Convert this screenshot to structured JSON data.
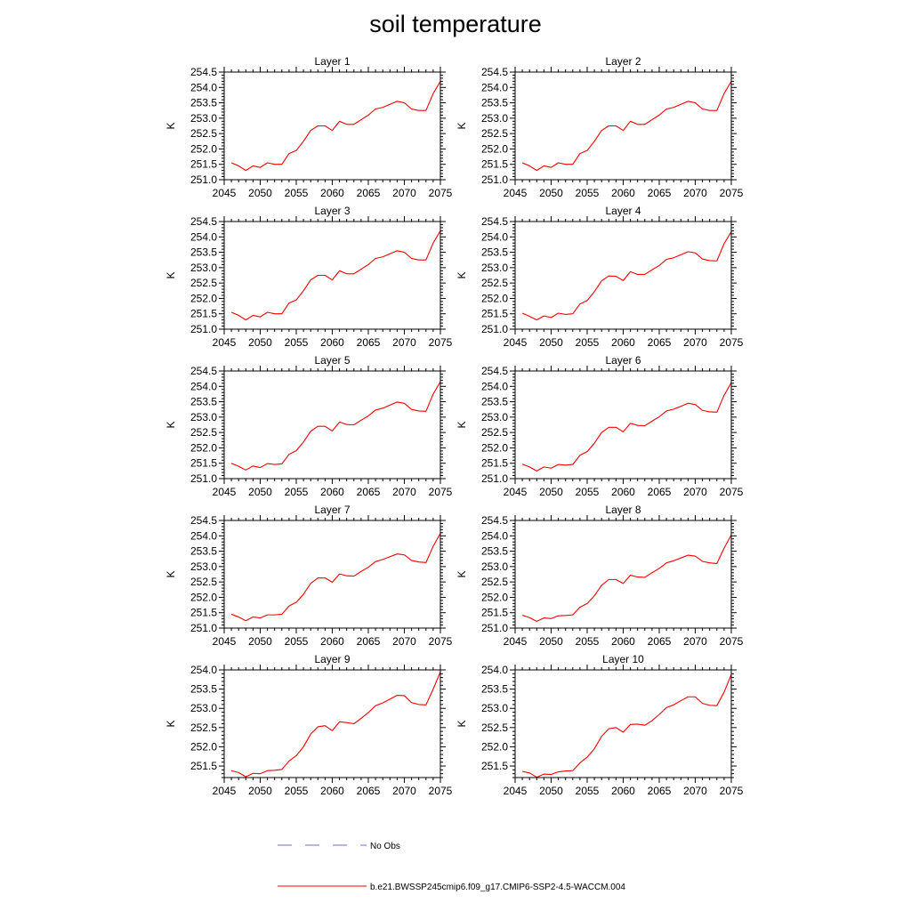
{
  "figure": {
    "title": "soil temperature",
    "legend": {
      "obs_label": "No Obs",
      "model_label": "b.e21.BWSSP245cmip6.f09_g17.CMIP6-SSP2-4.5-WACCM.004",
      "obs_color": "#6e6ec8",
      "model_color": "#ff0000"
    }
  },
  "chart_data": [
    {
      "type": "line",
      "title": "Layer 1",
      "ylabel": "K",
      "xlim": [
        2045,
        2075
      ],
      "ylim": [
        251.0,
        254.5
      ],
      "xticks": [
        2045,
        2050,
        2055,
        2060,
        2065,
        2070,
        2075
      ],
      "yticks": [
        251.0,
        251.5,
        252.0,
        252.5,
        253.0,
        253.5,
        254.0,
        254.5
      ],
      "series": [
        {
          "x": [
            2046,
            2047,
            2048,
            2049,
            2050,
            2051,
            2052,
            2053,
            2054,
            2055,
            2056,
            2057,
            2058,
            2059,
            2060,
            2061,
            2062,
            2063,
            2064,
            2065,
            2066,
            2067,
            2068,
            2069,
            2070,
            2071,
            2072,
            2073,
            2074,
            2075
          ],
          "y": [
            251.55,
            251.45,
            251.3,
            251.45,
            251.4,
            251.55,
            251.5,
            251.5,
            251.85,
            251.95,
            252.25,
            252.6,
            252.75,
            252.75,
            252.6,
            252.9,
            252.8,
            252.8,
            252.95,
            253.1,
            253.3,
            253.35,
            253.45,
            253.55,
            253.5,
            253.3,
            253.25,
            253.25,
            253.8,
            254.2
          ]
        }
      ]
    },
    {
      "type": "line",
      "title": "Layer 2",
      "ylabel": "K",
      "xlim": [
        2045,
        2075
      ],
      "ylim": [
        251.0,
        254.5
      ],
      "xticks": [
        2045,
        2050,
        2055,
        2060,
        2065,
        2070,
        2075
      ],
      "yticks": [
        251.0,
        251.5,
        252.0,
        252.5,
        253.0,
        253.5,
        254.0,
        254.5
      ],
      "series": [
        {
          "x": [
            2046,
            2047,
            2048,
            2049,
            2050,
            2051,
            2052,
            2053,
            2054,
            2055,
            2056,
            2057,
            2058,
            2059,
            2060,
            2061,
            2062,
            2063,
            2064,
            2065,
            2066,
            2067,
            2068,
            2069,
            2070,
            2071,
            2072,
            2073,
            2074,
            2075
          ],
          "y": [
            251.55,
            251.45,
            251.3,
            251.45,
            251.4,
            251.55,
            251.5,
            251.5,
            251.85,
            251.95,
            252.25,
            252.6,
            252.75,
            252.75,
            252.6,
            252.9,
            252.8,
            252.8,
            252.95,
            253.1,
            253.3,
            253.35,
            253.45,
            253.55,
            253.5,
            253.3,
            253.25,
            253.25,
            253.8,
            254.2
          ]
        }
      ]
    },
    {
      "type": "line",
      "title": "Layer 3",
      "ylabel": "K",
      "xlim": [
        2045,
        2075
      ],
      "ylim": [
        251.0,
        254.5
      ],
      "xticks": [
        2045,
        2050,
        2055,
        2060,
        2065,
        2070,
        2075
      ],
      "yticks": [
        251.0,
        251.5,
        252.0,
        252.5,
        253.0,
        253.5,
        254.0,
        254.5
      ],
      "series": [
        {
          "x": [
            2046,
            2047,
            2048,
            2049,
            2050,
            2051,
            2052,
            2053,
            2054,
            2055,
            2056,
            2057,
            2058,
            2059,
            2060,
            2061,
            2062,
            2063,
            2064,
            2065,
            2066,
            2067,
            2068,
            2069,
            2070,
            2071,
            2072,
            2073,
            2074,
            2075
          ],
          "y": [
            251.55,
            251.45,
            251.3,
            251.45,
            251.4,
            251.55,
            251.5,
            251.5,
            251.85,
            251.95,
            252.25,
            252.6,
            252.75,
            252.75,
            252.6,
            252.9,
            252.8,
            252.8,
            252.95,
            253.1,
            253.3,
            253.35,
            253.45,
            253.55,
            253.5,
            253.3,
            253.25,
            253.25,
            253.8,
            254.2
          ]
        }
      ]
    },
    {
      "type": "line",
      "title": "Layer 4",
      "ylabel": "K",
      "xlim": [
        2045,
        2075
      ],
      "ylim": [
        251.0,
        254.5
      ],
      "xticks": [
        2045,
        2050,
        2055,
        2060,
        2065,
        2070,
        2075
      ],
      "yticks": [
        251.0,
        251.5,
        252.0,
        252.5,
        253.0,
        253.5,
        254.0,
        254.5
      ],
      "series": [
        {
          "x": [
            2046,
            2047,
            2048,
            2049,
            2050,
            2051,
            2052,
            2053,
            2054,
            2055,
            2056,
            2057,
            2058,
            2059,
            2060,
            2061,
            2062,
            2063,
            2064,
            2065,
            2066,
            2067,
            2068,
            2069,
            2070,
            2071,
            2072,
            2073,
            2074,
            2075
          ],
          "y": [
            251.52,
            251.42,
            251.3,
            251.43,
            251.38,
            251.52,
            251.48,
            251.5,
            251.82,
            251.93,
            252.22,
            252.57,
            252.73,
            252.72,
            252.58,
            252.87,
            252.78,
            252.78,
            252.93,
            253.07,
            253.27,
            253.32,
            253.42,
            253.52,
            253.48,
            253.28,
            253.23,
            253.22,
            253.78,
            254.17
          ]
        }
      ]
    },
    {
      "type": "line",
      "title": "Layer 5",
      "ylabel": "K",
      "xlim": [
        2045,
        2075
      ],
      "ylim": [
        251.0,
        254.5
      ],
      "xticks": [
        2045,
        2050,
        2055,
        2060,
        2065,
        2070,
        2075
      ],
      "yticks": [
        251.0,
        251.5,
        252.0,
        252.5,
        253.0,
        253.5,
        254.0,
        254.5
      ],
      "series": [
        {
          "x": [
            2046,
            2047,
            2048,
            2049,
            2050,
            2051,
            2052,
            2053,
            2054,
            2055,
            2056,
            2057,
            2058,
            2059,
            2060,
            2061,
            2062,
            2063,
            2064,
            2065,
            2066,
            2067,
            2068,
            2069,
            2070,
            2071,
            2072,
            2073,
            2074,
            2075
          ],
          "y": [
            251.5,
            251.4,
            251.28,
            251.41,
            251.36,
            251.49,
            251.46,
            251.48,
            251.79,
            251.91,
            252.19,
            252.54,
            252.7,
            252.7,
            252.55,
            252.84,
            252.76,
            252.75,
            252.9,
            253.04,
            253.23,
            253.29,
            253.39,
            253.49,
            253.45,
            253.25,
            253.2,
            253.19,
            253.75,
            254.15
          ]
        }
      ]
    },
    {
      "type": "line",
      "title": "Layer 6",
      "ylabel": "K",
      "xlim": [
        2045,
        2075
      ],
      "ylim": [
        251.0,
        254.5
      ],
      "xticks": [
        2045,
        2050,
        2055,
        2060,
        2065,
        2070,
        2075
      ],
      "yticks": [
        251.0,
        251.5,
        252.0,
        252.5,
        253.0,
        253.5,
        254.0,
        254.5
      ],
      "series": [
        {
          "x": [
            2046,
            2047,
            2048,
            2049,
            2050,
            2051,
            2052,
            2053,
            2054,
            2055,
            2056,
            2057,
            2058,
            2059,
            2060,
            2061,
            2062,
            2063,
            2064,
            2065,
            2066,
            2067,
            2068,
            2069,
            2070,
            2071,
            2072,
            2073,
            2074,
            2075
          ],
          "y": [
            251.47,
            251.38,
            251.25,
            251.38,
            251.34,
            251.46,
            251.44,
            251.46,
            251.76,
            251.88,
            252.15,
            252.5,
            252.67,
            252.67,
            252.52,
            252.8,
            252.73,
            252.72,
            252.87,
            253.01,
            253.2,
            253.26,
            253.35,
            253.45,
            253.41,
            253.22,
            253.17,
            253.16,
            253.71,
            254.12
          ]
        }
      ]
    },
    {
      "type": "line",
      "title": "Layer 7",
      "ylabel": "K",
      "xlim": [
        2045,
        2075
      ],
      "ylim": [
        251.0,
        254.5
      ],
      "xticks": [
        2045,
        2050,
        2055,
        2060,
        2065,
        2070,
        2075
      ],
      "yticks": [
        251.0,
        251.5,
        252.0,
        252.5,
        253.0,
        253.5,
        254.0,
        254.5
      ],
      "series": [
        {
          "x": [
            2046,
            2047,
            2048,
            2049,
            2050,
            2051,
            2052,
            2053,
            2054,
            2055,
            2056,
            2057,
            2058,
            2059,
            2060,
            2061,
            2062,
            2063,
            2064,
            2065,
            2066,
            2067,
            2068,
            2069,
            2070,
            2071,
            2072,
            2073,
            2074,
            2075
          ],
          "y": [
            251.45,
            251.36,
            251.24,
            251.36,
            251.33,
            251.43,
            251.43,
            251.45,
            251.72,
            251.84,
            252.1,
            252.45,
            252.63,
            252.63,
            252.49,
            252.76,
            252.7,
            252.69,
            252.84,
            252.98,
            253.16,
            253.23,
            253.32,
            253.41,
            253.38,
            253.2,
            253.15,
            253.13,
            253.66,
            254.08
          ]
        }
      ]
    },
    {
      "type": "line",
      "title": "Layer 8",
      "ylabel": "K",
      "xlim": [
        2045,
        2075
      ],
      "ylim": [
        251.0,
        254.5
      ],
      "xticks": [
        2045,
        2050,
        2055,
        2060,
        2065,
        2070,
        2075
      ],
      "yticks": [
        251.0,
        251.5,
        252.0,
        252.5,
        253.0,
        253.5,
        254.0,
        254.5
      ],
      "series": [
        {
          "x": [
            2046,
            2047,
            2048,
            2049,
            2050,
            2051,
            2052,
            2053,
            2054,
            2055,
            2056,
            2057,
            2058,
            2059,
            2060,
            2061,
            2062,
            2063,
            2064,
            2065,
            2066,
            2067,
            2068,
            2069,
            2070,
            2071,
            2072,
            2073,
            2074,
            2075
          ],
          "y": [
            251.42,
            251.34,
            251.22,
            251.33,
            251.31,
            251.4,
            251.41,
            251.43,
            251.68,
            251.8,
            252.05,
            252.39,
            252.58,
            252.58,
            252.45,
            252.72,
            252.66,
            252.65,
            252.8,
            252.94,
            253.12,
            253.19,
            253.28,
            253.37,
            253.34,
            253.17,
            253.12,
            253.1,
            253.6,
            254.03
          ]
        }
      ]
    },
    {
      "type": "line",
      "title": "Layer 9",
      "ylabel": "K",
      "xlim": [
        2045,
        2075
      ],
      "ylim": [
        251.2,
        254.0
      ],
      "xticks": [
        2045,
        2050,
        2055,
        2060,
        2065,
        2070,
        2075
      ],
      "yticks": [
        251.5,
        252.0,
        252.5,
        253.0,
        253.5,
        254.0
      ],
      "series": [
        {
          "x": [
            2046,
            2047,
            2048,
            2049,
            2050,
            2051,
            2052,
            2053,
            2054,
            2055,
            2056,
            2057,
            2058,
            2059,
            2060,
            2061,
            2062,
            2063,
            2064,
            2065,
            2066,
            2067,
            2068,
            2069,
            2070,
            2071,
            2072,
            2073,
            2074,
            2075
          ],
          "y": [
            251.38,
            251.33,
            251.22,
            251.31,
            251.3,
            251.38,
            251.39,
            251.41,
            251.63,
            251.77,
            252.0,
            252.33,
            252.52,
            252.55,
            252.42,
            252.65,
            252.63,
            252.6,
            252.74,
            252.89,
            253.07,
            253.14,
            253.24,
            253.34,
            253.33,
            253.15,
            253.1,
            253.09,
            253.5,
            253.95
          ]
        }
      ]
    },
    {
      "type": "line",
      "title": "Layer 10",
      "ylabel": "K",
      "xlim": [
        2045,
        2075
      ],
      "ylim": [
        251.2,
        254.0
      ],
      "xticks": [
        2045,
        2050,
        2055,
        2060,
        2065,
        2070,
        2075
      ],
      "yticks": [
        251.5,
        252.0,
        252.5,
        253.0,
        253.5,
        254.0
      ],
      "series": [
        {
          "x": [
            2046,
            2047,
            2048,
            2049,
            2050,
            2051,
            2052,
            2053,
            2054,
            2055,
            2056,
            2057,
            2058,
            2059,
            2060,
            2061,
            2062,
            2063,
            2064,
            2065,
            2066,
            2067,
            2068,
            2069,
            2070,
            2071,
            2072,
            2073,
            2074,
            2075
          ],
          "y": [
            251.36,
            251.32,
            251.21,
            251.29,
            251.28,
            251.35,
            251.37,
            251.38,
            251.58,
            251.73,
            251.95,
            252.27,
            252.47,
            252.5,
            252.38,
            252.58,
            252.59,
            252.56,
            252.68,
            252.84,
            253.02,
            253.09,
            253.2,
            253.3,
            253.3,
            253.13,
            253.08,
            253.07,
            253.42,
            253.88
          ]
        }
      ]
    }
  ]
}
